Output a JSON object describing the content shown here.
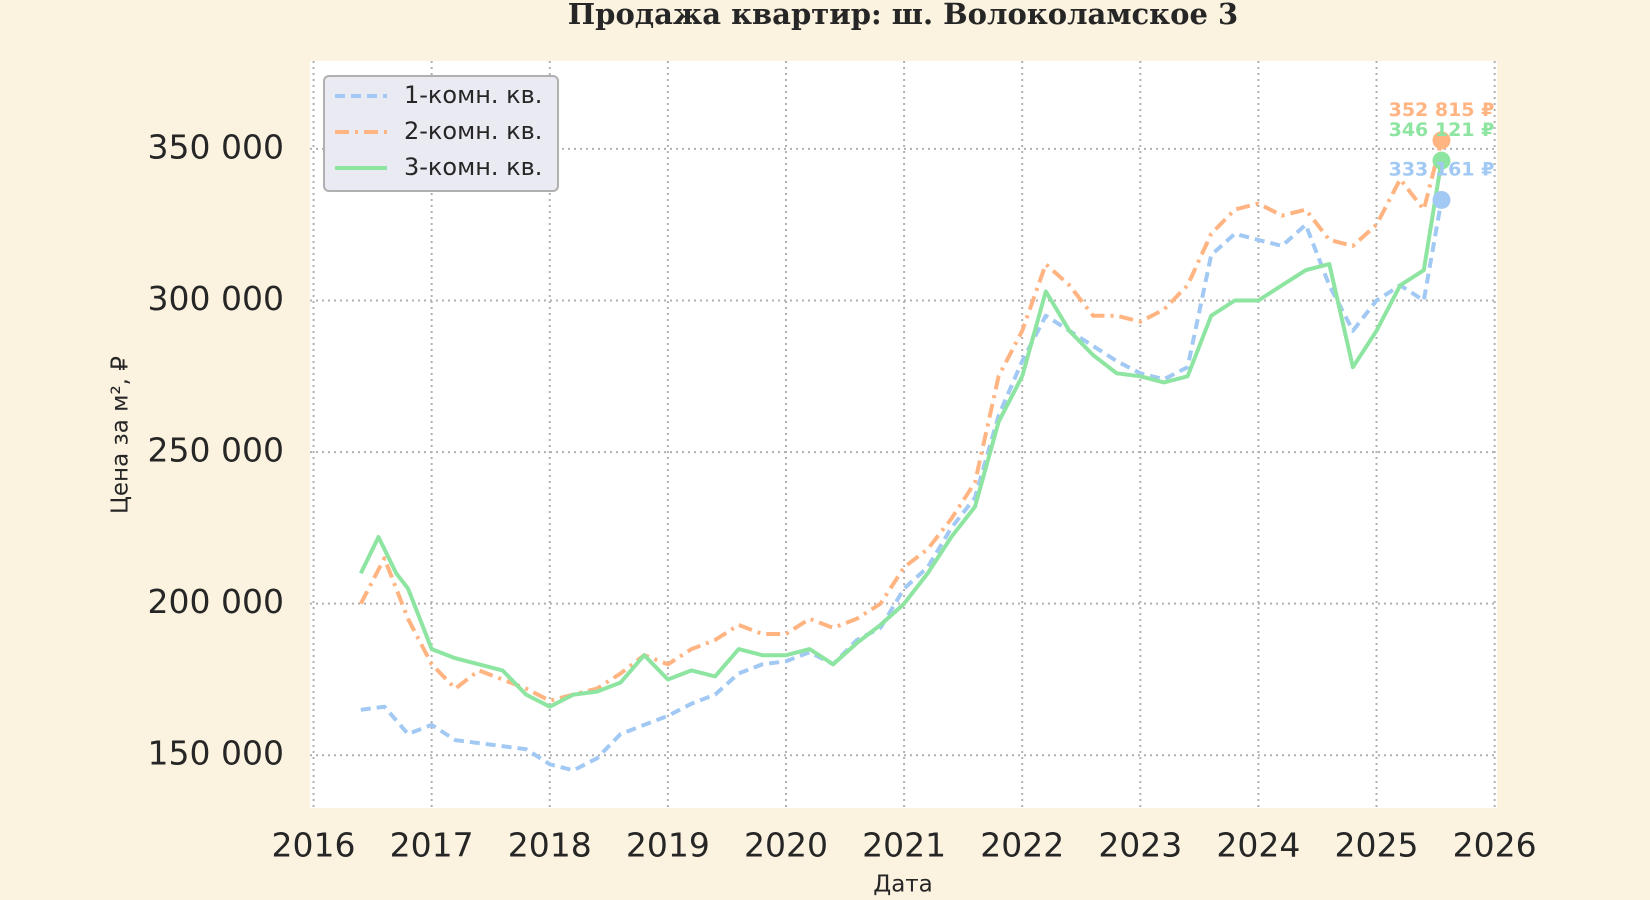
{
  "chart_data": {
    "type": "line",
    "title": "Продажа квартир: ш. Волоколамское 3",
    "x_label": "Дата",
    "y_label": "Цена за м², ₽",
    "xlim": [
      2015.97,
      2026.02
    ],
    "xticks": [
      2016,
      2017,
      2018,
      2019,
      2020,
      2021,
      2022,
      2023,
      2024,
      2025,
      2026
    ],
    "ylim": [
      132600,
      379000
    ],
    "yticks": [
      {
        "value": 150000,
        "label": "150 000"
      },
      {
        "value": 200000,
        "label": "200 000"
      },
      {
        "value": 250000,
        "label": "250 000"
      },
      {
        "value": 300000,
        "label": "300 000"
      },
      {
        "value": 350000,
        "label": "350 000"
      }
    ],
    "grid": true,
    "legend": "upper left",
    "series": [
      {
        "name": "1-комн. кв.",
        "color": "#a1c9f4",
        "linestyle": "dashed",
        "x": [
          2016.4,
          2016.6,
          2016.8,
          2017.0,
          2017.2,
          2017.4,
          2017.6,
          2017.8,
          2018.0,
          2018.2,
          2018.4,
          2018.6,
          2018.8,
          2019.0,
          2019.2,
          2019.4,
          2019.6,
          2019.8,
          2020.0,
          2020.2,
          2020.4,
          2020.6,
          2020.8,
          2021.0,
          2021.2,
          2021.4,
          2021.6,
          2021.8,
          2022.0,
          2022.2,
          2022.4,
          2022.6,
          2022.8,
          2023.0,
          2023.2,
          2023.4,
          2023.6,
          2023.8,
          2024.0,
          2024.2,
          2024.4,
          2024.6,
          2024.8,
          2025.0,
          2025.2,
          2025.4,
          2025.55
        ],
        "values": [
          165000,
          166000,
          157000,
          160000,
          155000,
          154000,
          153000,
          152000,
          147000,
          145000,
          149000,
          157000,
          160000,
          163000,
          167000,
          170000,
          177000,
          180000,
          181000,
          184000,
          180000,
          188000,
          192000,
          205000,
          212000,
          225000,
          235000,
          262000,
          280000,
          295000,
          290000,
          285000,
          280000,
          276000,
          274000,
          278000,
          315000,
          322000,
          320000,
          318000,
          325000,
          305000,
          290000,
          300000,
          305000,
          300000,
          333161
        ]
      },
      {
        "name": "2-комн. кв.",
        "color": "#ffb482",
        "linestyle": "dashdot",
        "x": [
          2016.4,
          2016.6,
          2016.8,
          2017.0,
          2017.2,
          2017.4,
          2017.6,
          2017.8,
          2018.0,
          2018.2,
          2018.4,
          2018.6,
          2018.8,
          2019.0,
          2019.2,
          2019.4,
          2019.6,
          2019.8,
          2020.0,
          2020.2,
          2020.4,
          2020.6,
          2020.8,
          2021.0,
          2021.2,
          2021.4,
          2021.6,
          2021.8,
          2022.0,
          2022.2,
          2022.4,
          2022.6,
          2022.8,
          2023.0,
          2023.2,
          2023.4,
          2023.6,
          2023.8,
          2024.0,
          2024.2,
          2024.4,
          2024.6,
          2024.8,
          2025.0,
          2025.2,
          2025.4,
          2025.55
        ],
        "values": [
          200000,
          215000,
          195000,
          180000,
          172000,
          178000,
          175000,
          172000,
          168000,
          170000,
          172000,
          177000,
          183000,
          180000,
          185000,
          188000,
          193000,
          190000,
          190000,
          195000,
          192000,
          195000,
          200000,
          212000,
          218000,
          228000,
          240000,
          275000,
          290000,
          312000,
          305000,
          295000,
          295000,
          293000,
          297000,
          305000,
          322000,
          330000,
          332000,
          328000,
          330000,
          320000,
          318000,
          325000,
          340000,
          330000,
          352815
        ]
      },
      {
        "name": "3-комн. кв.",
        "color": "#8de5a1",
        "linestyle": "solid",
        "x": [
          2016.4,
          2016.55,
          2016.7,
          2016.8,
          2017.0,
          2017.2,
          2017.4,
          2017.6,
          2017.8,
          2018.0,
          2018.2,
          2018.4,
          2018.6,
          2018.8,
          2019.0,
          2019.2,
          2019.4,
          2019.6,
          2019.8,
          2020.0,
          2020.2,
          2020.4,
          2020.6,
          2020.8,
          2021.0,
          2021.2,
          2021.4,
          2021.6,
          2021.8,
          2022.0,
          2022.2,
          2022.4,
          2022.6,
          2022.8,
          2023.0,
          2023.2,
          2023.4,
          2023.6,
          2023.8,
          2024.0,
          2024.2,
          2024.4,
          2024.6,
          2024.8,
          2025.0,
          2025.2,
          2025.4,
          2025.55
        ],
        "values": [
          210000,
          222000,
          210000,
          205000,
          185000,
          182000,
          180000,
          178000,
          170000,
          166000,
          170000,
          171000,
          174000,
          183000,
          175000,
          178000,
          176000,
          185000,
          183000,
          183000,
          185000,
          180000,
          187000,
          193000,
          200000,
          210000,
          222000,
          232000,
          260000,
          275000,
          303000,
          290000,
          282000,
          276000,
          275000,
          273000,
          275000,
          295000,
          300000,
          300000,
          305000,
          310000,
          312000,
          278000,
          290000,
          305000,
          310000,
          346121
        ]
      }
    ],
    "annotations": [
      {
        "x": 2025.55,
        "value": 352815,
        "label": "352 815 ₽",
        "color": "#ffb482"
      },
      {
        "x": 2025.55,
        "value": 346121,
        "label": "346 121 ₽",
        "color": "#8de5a1"
      },
      {
        "x": 2025.55,
        "value": 333161,
        "label": "333 161 ₽",
        "color": "#a1c9f4"
      }
    ]
  }
}
